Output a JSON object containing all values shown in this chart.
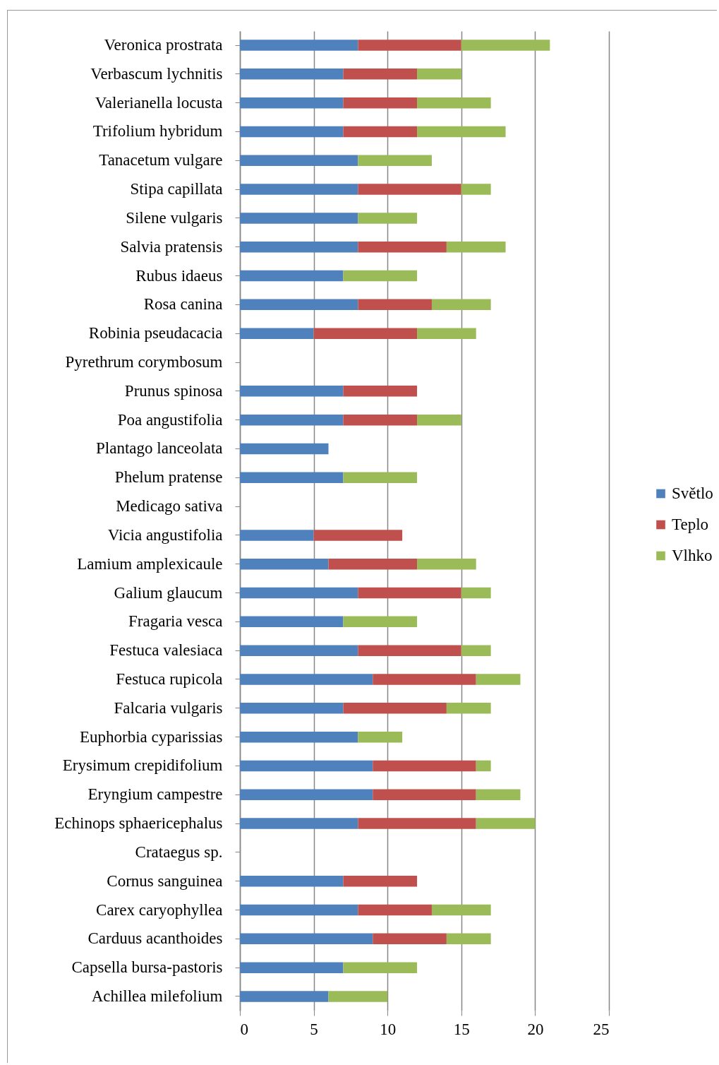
{
  "chart_data": {
    "type": "bar",
    "orientation": "horizontal",
    "stacked": true,
    "categories": [
      "Veronica prostrata",
      "Verbascum lychnitis",
      "Valerianella locusta",
      "Trifolium hybridum",
      "Tanacetum vulgare",
      "Stipa capillata",
      "Silene vulgaris",
      "Salvia pratensis",
      "Rubus idaeus",
      "Rosa canina",
      "Robinia pseudacacia",
      "Pyrethrum corymbosum",
      "Prunus spinosa",
      "Poa angustifolia",
      "Plantago lanceolata",
      "Phelum pratense",
      "Medicago sativa",
      "Vicia angustifolia",
      "Lamium amplexicaule",
      "Galium glaucum",
      "Fragaria vesca",
      "Festuca valesiaca",
      "Festuca rupicola",
      "Falcaria vulgaris",
      "Euphorbia cyparissias",
      "Erysimum crepidifolium",
      "Eryngium campestre",
      "Echinops sphaericephalus",
      "Crataegus sp.",
      "Cornus sanguinea",
      "Carex caryophyllea",
      "Carduus acanthoides",
      "Capsella bursa-pastoris",
      "Achillea milefolium"
    ],
    "series": [
      {
        "name": "Světlo",
        "color": "#4f81bd",
        "values": [
          8,
          7,
          7,
          7,
          8,
          8,
          8,
          8,
          7,
          8,
          5,
          null,
          7,
          7,
          6,
          7,
          null,
          5,
          6,
          8,
          7,
          8,
          9,
          7,
          8,
          9,
          9,
          8,
          null,
          7,
          8,
          9,
          7,
          6
        ]
      },
      {
        "name": "Teplo",
        "color": "#c0504d",
        "values": [
          7,
          5,
          5,
          5,
          null,
          7,
          null,
          6,
          null,
          5,
          7,
          null,
          5,
          5,
          null,
          null,
          null,
          6,
          6,
          7,
          null,
          7,
          7,
          7,
          null,
          7,
          7,
          8,
          null,
          5,
          5,
          5,
          null,
          null
        ]
      },
      {
        "name": "Vlhko",
        "color": "#9bbb59",
        "values": [
          6,
          3,
          5,
          6,
          5,
          2,
          4,
          4,
          5,
          4,
          4,
          null,
          null,
          3,
          null,
          5,
          null,
          null,
          4,
          2,
          5,
          2,
          3,
          3,
          3,
          1,
          3,
          4,
          null,
          null,
          4,
          3,
          5,
          4
        ]
      }
    ],
    "xlim": [
      0,
      25
    ],
    "xticks": [
      0,
      5,
      10,
      15,
      20,
      25
    ],
    "grid": "x",
    "legend": "right"
  }
}
